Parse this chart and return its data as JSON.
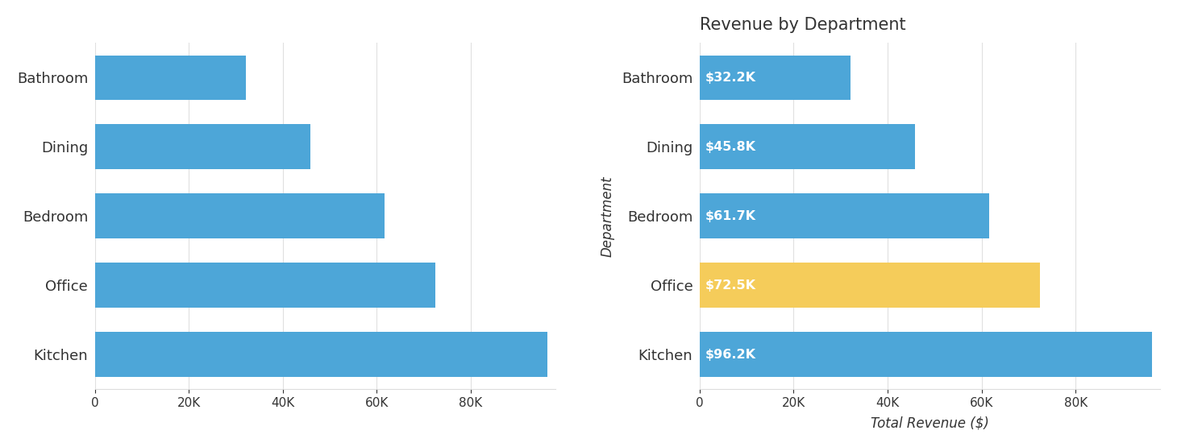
{
  "categories": [
    "Kitchen",
    "Office",
    "Bedroom",
    "Dining",
    "Bathroom"
  ],
  "values_left": [
    96200,
    72500,
    61700,
    45800,
    32200
  ],
  "values_right": [
    96200,
    72500,
    61700,
    45800,
    32200
  ],
  "labels_right": [
    "$96.2K",
    "$72.5K",
    "$61.7K",
    "$45.8K",
    "$32.2K"
  ],
  "bar_colors_left": [
    "#4da6d8",
    "#4da6d8",
    "#4da6d8",
    "#4da6d8",
    "#4da6d8"
  ],
  "bar_colors_right": [
    "#4da6d8",
    "#f5cc5a",
    "#4da6d8",
    "#4da6d8",
    "#4da6d8"
  ],
  "title_right": "Revenue by Department",
  "xlabel_right": "Total Revenue ($)",
  "ylabel_right": "Department",
  "background_color": "#ffffff",
  "bar_height": 0.65,
  "xlim_left": [
    0,
    98000
  ],
  "xlim_right": [
    0,
    98000
  ],
  "xticks": [
    0,
    20000,
    40000,
    60000,
    80000
  ],
  "xtick_labels": [
    "0",
    "20K",
    "40K",
    "60K",
    "80K"
  ],
  "label_fontsize": 13,
  "tick_fontsize": 11,
  "title_fontsize": 15,
  "annotation_fontsize": 11.5,
  "grid_color": "#e0e0e0",
  "text_color": "#333333"
}
